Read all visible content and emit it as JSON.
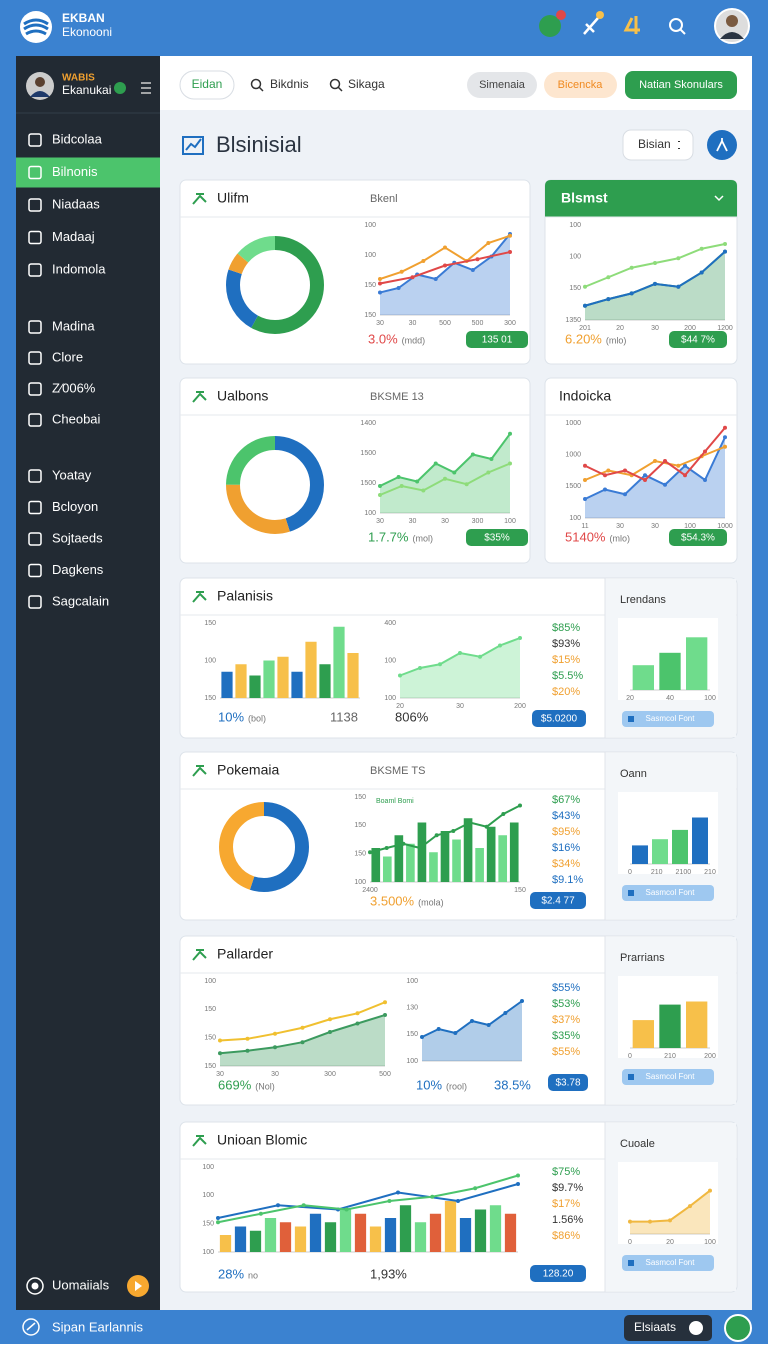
{
  "header": {
    "brand": [
      "EKBAN",
      "Ekonooni"
    ]
  },
  "sidebar": {
    "user": [
      "WABIS",
      "Ekanukai"
    ],
    "active": [
      0,
      1
    ],
    "groups": [
      [
        "Bidcolaa",
        "Bilnonis",
        "Niadaas",
        "Madaaj",
        "Indomola"
      ],
      [
        "Madina",
        "Clore",
        "Z⁄006%",
        "Cheobai"
      ],
      [
        "Yoatay",
        "Bcloyon",
        "Sojtaeds",
        "Dagkens",
        "Sagcalain"
      ]
    ],
    "footer": "Uomaiials"
  },
  "toolbar": {
    "tabs": [
      "Eidan",
      "Bikdnis",
      "Sikaga"
    ],
    "buttons": [
      "Simenaia",
      "Bicencka",
      "Natian Skonulars"
    ]
  },
  "page": {
    "title": "Blsinisial",
    "select": "Bisian"
  },
  "cards": [
    {
      "title": "Ulifm",
      "subtitle": "Bkenl",
      "widgets": [
        {
          "type": "donut",
          "values": [
            58,
            22,
            6,
            14
          ],
          "colors": [
            "#2e9e4f",
            "#1f6fc0",
            "#f0a030",
            "#6fdc8c"
          ]
        },
        {
          "type": "line",
          "ylim": [
            0,
            100
          ],
          "ylabels": [
            "100",
            "100",
            "150",
            "150"
          ],
          "xlabels": [
            "30",
            "30",
            "500",
            "500",
            "300"
          ],
          "series": [
            {
              "color": "#3a7bd5",
              "fill": true,
              "values": [
                25,
                30,
                45,
                40,
                58,
                50,
                65,
                90
              ]
            },
            {
              "color": "#f0a030",
              "values": [
                40,
                48,
                60,
                75,
                60,
                80,
                88
              ]
            },
            {
              "color": "#e04848",
              "values": [
                35,
                42,
                55,
                62,
                70
              ]
            }
          ]
        },
        {
          "type": "stat",
          "text": "3.0%",
          "note": "(mdd)",
          "color": "#e04848"
        },
        {
          "type": "badge",
          "text": "135 01",
          "color": "#2e9e4f"
        }
      ]
    },
    {
      "title": "Blsmst",
      "header_color": "#2e9e4f",
      "widgets": [
        {
          "type": "line",
          "ylim": [
            0,
            100
          ],
          "ylabels": [
            "100",
            "100",
            "150",
            "1350"
          ],
          "xlabels": [
            "201",
            "20",
            "30",
            "200",
            "1200"
          ],
          "series": [
            {
              "color": "#3c9a5f",
              "fill": true,
              "values": [
                15,
                22,
                28,
                38,
                35,
                50,
                72
              ]
            },
            {
              "color": "#8edc7a",
              "values": [
                35,
                45,
                55,
                60,
                65,
                75,
                80
              ]
            },
            {
              "color": "#1f6fc0",
              "values": [
                15,
                22,
                28,
                38,
                35,
                50,
                72
              ]
            }
          ]
        },
        {
          "type": "stat",
          "text": "6.20%",
          "note": "(mlo)",
          "color": "#f0a030"
        },
        {
          "type": "badge",
          "text": "$44 7%",
          "color": "#2e9e4f"
        }
      ]
    },
    {
      "title": "Ualbons",
      "subtitle": "BKSME 13",
      "widgets": [
        {
          "type": "donut",
          "values": [
            45,
            30,
            25
          ],
          "colors": [
            "#1f6fc0",
            "#f0a030",
            "#4cc46c"
          ]
        },
        {
          "type": "line",
          "ylim": [
            0,
            100
          ],
          "ylabels": [
            "1400",
            "1500",
            "1500",
            "100"
          ],
          "xlabels": [
            "30",
            "30",
            "30",
            "300",
            "100"
          ],
          "series": [
            {
              "color": "#4cc46c",
              "fill": true,
              "values": [
                30,
                40,
                35,
                55,
                45,
                65,
                60,
                88
              ]
            },
            {
              "color": "#8edc7a",
              "values": [
                20,
                30,
                25,
                38,
                32,
                45,
                55
              ]
            }
          ]
        },
        {
          "type": "stat",
          "text": "1.7.7%",
          "note": "(mol)",
          "color": "#2e9e4f"
        },
        {
          "type": "badge",
          "text": "$35%",
          "color": "#2e9e4f"
        }
      ]
    },
    {
      "title": "Indoicka",
      "widgets": [
        {
          "type": "line",
          "ylim": [
            0,
            100
          ],
          "ylabels": [
            "1000",
            "1000",
            "1500",
            "100"
          ],
          "xlabels": [
            "11",
            "30",
            "30",
            "100",
            "1000"
          ],
          "series": [
            {
              "color": "#3a7bd5",
              "fill": true,
              "values": [
                20,
                30,
                25,
                45,
                35,
                55,
                40,
                85
              ]
            },
            {
              "color": "#f0a030",
              "values": [
                40,
                50,
                45,
                60,
                55,
                65,
                75
              ]
            },
            {
              "color": "#e04848",
              "values": [
                55,
                45,
                50,
                40,
                60,
                45,
                70,
                95
              ]
            }
          ]
        },
        {
          "type": "stat",
          "text": "5140%",
          "note": "(mlo)",
          "color": "#e04848"
        },
        {
          "type": "badge",
          "text": "$54.3%",
          "color": "#2e9e4f"
        }
      ]
    },
    {
      "title": "Palanisis",
      "widgets": [
        {
          "type": "bars",
          "ylim": [
            0,
            100
          ],
          "ylabels": [
            "150",
            "100",
            "150"
          ],
          "values": [
            35,
            45,
            30,
            50,
            55,
            35,
            75,
            45,
            95,
            60
          ],
          "colors": [
            "#1f6fc0",
            "#f7c04a",
            "#2e9e4f",
            "#6fdc8c",
            "#f7c04a"
          ]
        },
        {
          "type": "stat",
          "text": "10%",
          "note": "(bol)",
          "color": "#1f6fc0"
        },
        {
          "type": "stat",
          "text": "1138",
          "color": "#666666"
        },
        {
          "type": "line",
          "ylim": [
            0,
            100
          ],
          "ylabels": [
            "400",
            "100",
            "100"
          ],
          "xlabels": [
            "20",
            "30",
            "200"
          ],
          "series": [
            {
              "color": "#6fdc8c",
              "fill": true,
              "values": [
                30,
                40,
                45,
                60,
                55,
                70,
                80
              ]
            }
          ]
        },
        {
          "type": "stat",
          "text": "806%",
          "color": "#333333"
        },
        {
          "type": "list",
          "items": [
            {
              "text": "$85%",
              "color": "#2e9e4f"
            },
            {
              "text": "$93%",
              "color": "#333333"
            },
            {
              "text": "$15%",
              "color": "#f0a030"
            },
            {
              "text": "$5.5%",
              "color": "#2e9e4f"
            },
            {
              "text": "$20%",
              "color": "#f0a030"
            }
          ]
        },
        {
          "type": "badge",
          "text": "$5.0200",
          "color": "#1f6fc0"
        }
      ],
      "panel": {
        "title": "Lrendans",
        "button": "Sasmcol Font",
        "chart": {
          "type": "bars",
          "ylim": [
            0,
            100
          ],
          "values": [
            40,
            60,
            85
          ],
          "colors": [
            "#6fdc8c",
            "#4cc46c",
            "#6fdc8c"
          ],
          "xlabels": [
            "20",
            "40",
            "100"
          ]
        }
      }
    },
    {
      "title": "Pokemaia",
      "subtitle": "BKSME TS",
      "widgets": [
        {
          "type": "donut",
          "values": [
            55,
            45
          ],
          "colors": [
            "#1f6fc0",
            "#f7a830"
          ]
        },
        {
          "type": "combo",
          "ylim": [
            0,
            100
          ],
          "legend": "Boaml Bomi",
          "ylabels": [
            "150",
            "150",
            "150",
            "100"
          ],
          "xlabels": [
            "2400",
            "150"
          ],
          "values": [
            40,
            30,
            55,
            45,
            70,
            35,
            60,
            50,
            75,
            40,
            65,
            55,
            70
          ],
          "colors": [
            "#2e9e4f",
            "#6fdc8c"
          ],
          "series": [
            {
              "color": "#2e9e4f",
              "values": [
                35,
                40,
                45,
                40,
                55,
                60,
                70,
                65,
                80,
                90
              ]
            }
          ]
        },
        {
          "type": "stat",
          "text": "3.500%",
          "note": "(mola)",
          "color": "#f0a030"
        },
        {
          "type": "list",
          "items": [
            {
              "text": "$67%",
              "color": "#2e9e4f"
            },
            {
              "text": "$43%",
              "color": "#1f6fc0"
            },
            {
              "text": "$95%",
              "color": "#f0a030"
            },
            {
              "text": "$16%",
              "color": "#1f6fc0"
            },
            {
              "text": "$34%",
              "color": "#f0a030"
            },
            {
              "text": "$9.1%",
              "color": "#1f6fc0"
            }
          ]
        },
        {
          "type": "badge",
          "text": "$2.4 77",
          "color": "#1f6fc0"
        }
      ],
      "panel": {
        "title": "Oann",
        "button": "Sasmcol Font",
        "chart": {
          "type": "bars",
          "ylim": [
            0,
            100
          ],
          "values": [
            30,
            40,
            55,
            75
          ],
          "colors": [
            "#1f6fc0",
            "#6fdc8c",
            "#4cc46c",
            "#1f6fc0"
          ],
          "xlabels": [
            "0",
            "210",
            "2100",
            "210"
          ]
        }
      }
    },
    {
      "title": "Pallarder",
      "widgets": [
        {
          "type": "line",
          "ylim": [
            0,
            100
          ],
          "ylabels": [
            "100",
            "150",
            "150",
            "150"
          ],
          "xlabels": [
            "30",
            "30",
            "300",
            "500"
          ],
          "series": [
            {
              "color": "#3c9a5f",
              "fill": true,
              "values": [
                15,
                18,
                22,
                28,
                40,
                50,
                60
              ]
            },
            {
              "color": "#f0c030",
              "values": [
                30,
                32,
                38,
                45,
                55,
                62,
                75
              ]
            }
          ]
        },
        {
          "type": "line",
          "ylim": [
            0,
            100
          ],
          "ylabels": [
            "100",
            "130",
            "150",
            "100"
          ],
          "series": [
            {
              "color": "#1f6fc0",
              "fill": true,
              "values": [
                30,
                40,
                35,
                50,
                45,
                60,
                75
              ]
            }
          ]
        },
        {
          "type": "stat",
          "text": "669%",
          "note": "(Nol)",
          "color": "#2e9e4f"
        },
        {
          "type": "stat",
          "text": "10%",
          "note": "(rool)",
          "color": "#1f6fc0"
        },
        {
          "type": "stat",
          "text": "38.5%",
          "color": "#1f6fc0"
        },
        {
          "type": "list",
          "items": [
            {
              "text": "$55%",
              "color": "#1f6fc0"
            },
            {
              "text": "$53%",
              "color": "#2e9e4f"
            },
            {
              "text": "$37%",
              "color": "#f0a030"
            },
            {
              "text": "$35%",
              "color": "#2e9e4f"
            },
            {
              "text": "$55%",
              "color": "#f0a030"
            }
          ]
        },
        {
          "type": "badge",
          "text": "$3.78",
          "color": "#1f6fc0"
        }
      ],
      "panel": {
        "title": "Prarrians",
        "button": "Sasmcol Font",
        "chart": {
          "type": "bars",
          "ylim": [
            0,
            100
          ],
          "values": [
            45,
            70,
            75
          ],
          "colors": [
            "#f7c04a",
            "#2e9e4f",
            "#f7c04a"
          ],
          "xlabels": [
            "0",
            "210",
            "200"
          ]
        }
      }
    },
    {
      "title": "Unioan Blomic",
      "widgets": [
        {
          "type": "combo",
          "ylim": [
            0,
            100
          ],
          "ylabels": [
            "100",
            "100",
            "150",
            "100"
          ],
          "values": [
            20,
            30,
            25,
            40,
            35,
            30,
            45,
            35,
            50,
            45,
            30,
            40,
            55,
            35,
            45,
            60,
            40,
            50,
            55,
            45
          ],
          "colors": [
            "#f7c04a",
            "#1f6fc0",
            "#2e9e4f",
            "#6fdc8c",
            "#e0603a"
          ],
          "series": [
            {
              "color": "#1f6fc0",
              "values": [
                40,
                55,
                50,
                70,
                60,
                80
              ]
            },
            {
              "color": "#4cc46c",
              "values": [
                35,
                45,
                55,
                50,
                60,
                65,
                75,
                90
              ]
            }
          ]
        },
        {
          "type": "stat",
          "text": "28%",
          "note": "no",
          "color": "#1f6fc0"
        },
        {
          "type": "stat",
          "text": "1,93%",
          "color": "#333333"
        },
        {
          "type": "list",
          "items": [
            {
              "text": "$75%",
              "color": "#2e9e4f"
            },
            {
              "text": "$9.7%",
              "color": "#333333"
            },
            {
              "text": "$17%",
              "color": "#f0a030"
            },
            {
              "text": "1.56%",
              "color": "#333333"
            },
            {
              "text": "$86%",
              "color": "#f0a030"
            }
          ]
        },
        {
          "type": "badge",
          "text": "128.20",
          "color": "#1f6fc0"
        }
      ],
      "panel": {
        "title": "Cuoale",
        "button": "Sasmcol Font",
        "chart": {
          "type": "line",
          "ylim": [
            0,
            100
          ],
          "xlabels": [
            "0",
            "20",
            "100"
          ],
          "series": [
            {
              "color": "#f0b840",
              "fill": true,
              "values": [
                20,
                20,
                22,
                45,
                70
              ]
            }
          ]
        }
      }
    }
  ],
  "bottom": {
    "left": "Sipan Earlannis",
    "right": "Elsiaats"
  }
}
